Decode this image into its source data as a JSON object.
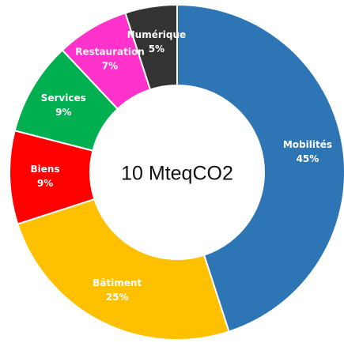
{
  "chart_data": {
    "type": "pie",
    "variant": "donut",
    "center_text": "10 MteqCO2",
    "slices": [
      {
        "label": "Mobilités",
        "pct_text": "45%",
        "value": 45,
        "color": "#2E75B6"
      },
      {
        "label": "Bâtiment",
        "pct_text": "25%",
        "value": 25,
        "color": "#FFC000"
      },
      {
        "label": "Biens",
        "pct_text": "9%",
        "value": 9,
        "color": "#FF0000"
      },
      {
        "label": "Services",
        "pct_text": "9%",
        "value": 9,
        "color": "#00B050"
      },
      {
        "label": "Restauration",
        "pct_text": "7%",
        "value": 7,
        "color": "#FF33CC"
      },
      {
        "label": "Numérique",
        "pct_text": "5%",
        "value": 5,
        "color": "#333333"
      }
    ],
    "start_angle_deg": 0,
    "direction": "clockwise"
  }
}
